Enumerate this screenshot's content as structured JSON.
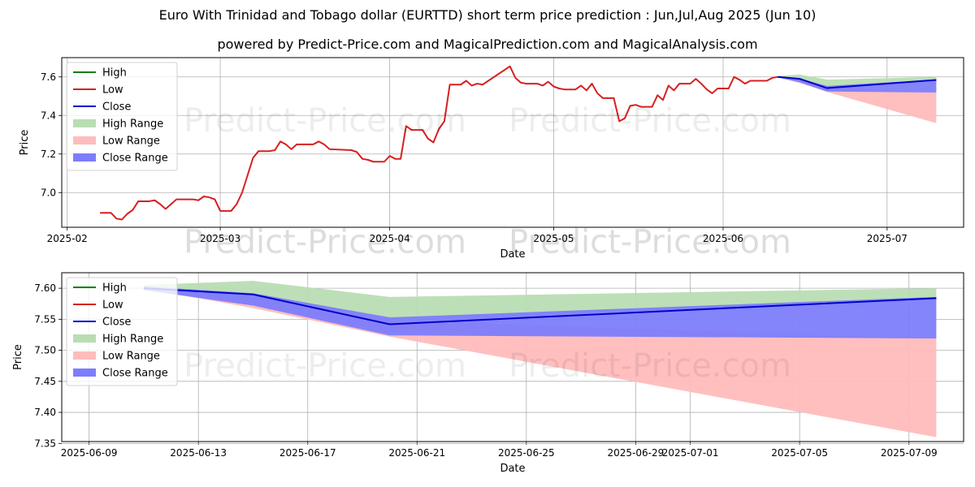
{
  "title": "Euro With Trinidad and Tobago dollar (EURTTD) short term price prediction : Jun,Jul,Aug 2025 (Jun 10)",
  "subtitle": "powered by Predict-Price.com and MagicalPrediction.com and MagicalAnalysis.com",
  "watermark": "Predict-Price.com",
  "colors": {
    "high": "#008000",
    "low": "#d62020",
    "close": "#0000cc",
    "high_range": "#b9ddb3",
    "low_range": "#ffbcbc",
    "close_range": "#7d7dfb"
  },
  "chart_data": [
    {
      "type": "line",
      "xlabel": "Date",
      "ylabel": "Price",
      "grid": true,
      "legend_position": "top-left",
      "legend": [
        "High",
        "Low",
        "Close",
        "High Range",
        "Low Range",
        "Close Range"
      ],
      "xlim": [
        "2025-01-31",
        "2025-07-15"
      ],
      "ylim": [
        6.82,
        7.7
      ],
      "x_ticks": [
        "2025-02",
        "2025-03",
        "2025-04",
        "2025-05",
        "2025-06",
        "2025-07"
      ],
      "y_ticks": [
        7.0,
        7.2,
        7.4,
        7.6
      ],
      "series": [
        {
          "name": "Low",
          "points": [
            [
              "2025-02-07",
              6.895
            ],
            [
              "2025-02-09",
              6.895
            ],
            [
              "2025-02-10",
              6.865
            ],
            [
              "2025-02-11",
              6.86
            ],
            [
              "2025-02-12",
              6.89
            ],
            [
              "2025-02-13",
              6.91
            ],
            [
              "2025-02-14",
              6.955
            ],
            [
              "2025-02-16",
              6.955
            ],
            [
              "2025-02-17",
              6.96
            ],
            [
              "2025-02-18",
              6.94
            ],
            [
              "2025-02-19",
              6.915
            ],
            [
              "2025-02-20",
              6.94
            ],
            [
              "2025-02-21",
              6.965
            ],
            [
              "2025-02-24",
              6.965
            ],
            [
              "2025-02-25",
              6.96
            ],
            [
              "2025-02-26",
              6.98
            ],
            [
              "2025-02-27",
              6.975
            ],
            [
              "2025-02-28",
              6.965
            ],
            [
              "2025-03-01",
              6.905
            ],
            [
              "2025-03-03",
              6.905
            ],
            [
              "2025-03-04",
              6.94
            ],
            [
              "2025-03-05",
              7.0
            ],
            [
              "2025-03-06",
              7.09
            ],
            [
              "2025-03-07",
              7.18
            ],
            [
              "2025-03-08",
              7.215
            ],
            [
              "2025-03-10",
              7.215
            ],
            [
              "2025-03-11",
              7.22
            ],
            [
              "2025-03-12",
              7.265
            ],
            [
              "2025-03-13",
              7.25
            ],
            [
              "2025-03-14",
              7.225
            ],
            [
              "2025-03-15",
              7.25
            ],
            [
              "2025-03-18",
              7.25
            ],
            [
              "2025-03-19",
              7.265
            ],
            [
              "2025-03-20",
              7.25
            ],
            [
              "2025-03-21",
              7.225
            ],
            [
              "2025-03-25",
              7.22
            ],
            [
              "2025-03-26",
              7.21
            ],
            [
              "2025-03-27",
              7.175
            ],
            [
              "2025-03-28",
              7.17
            ],
            [
              "2025-03-29",
              7.16
            ],
            [
              "2025-03-31",
              7.16
            ],
            [
              "2025-04-01",
              7.19
            ],
            [
              "2025-04-02",
              7.175
            ],
            [
              "2025-04-03",
              7.175
            ],
            [
              "2025-04-04",
              7.345
            ],
            [
              "2025-04-05",
              7.325
            ],
            [
              "2025-04-07",
              7.325
            ],
            [
              "2025-04-08",
              7.28
            ],
            [
              "2025-04-09",
              7.26
            ],
            [
              "2025-04-10",
              7.33
            ],
            [
              "2025-04-11",
              7.37
            ],
            [
              "2025-04-12",
              7.56
            ],
            [
              "2025-04-14",
              7.56
            ],
            [
              "2025-04-15",
              7.58
            ],
            [
              "2025-04-16",
              7.555
            ],
            [
              "2025-04-17",
              7.565
            ],
            [
              "2025-04-18",
              7.56
            ],
            [
              "2025-04-23",
              7.655
            ],
            [
              "2025-04-24",
              7.595
            ],
            [
              "2025-04-25",
              7.57
            ],
            [
              "2025-04-26",
              7.565
            ],
            [
              "2025-04-28",
              7.565
            ],
            [
              "2025-04-29",
              7.555
            ],
            [
              "2025-04-30",
              7.575
            ],
            [
              "2025-05-01",
              7.55
            ],
            [
              "2025-05-02",
              7.54
            ],
            [
              "2025-05-03",
              7.535
            ],
            [
              "2025-05-05",
              7.535
            ],
            [
              "2025-05-06",
              7.555
            ],
            [
              "2025-05-07",
              7.53
            ],
            [
              "2025-05-08",
              7.565
            ],
            [
              "2025-05-09",
              7.515
            ],
            [
              "2025-05-10",
              7.49
            ],
            [
              "2025-05-12",
              7.49
            ],
            [
              "2025-05-13",
              7.37
            ],
            [
              "2025-05-14",
              7.385
            ],
            [
              "2025-05-15",
              7.45
            ],
            [
              "2025-05-16",
              7.455
            ],
            [
              "2025-05-17",
              7.445
            ],
            [
              "2025-05-19",
              7.445
            ],
            [
              "2025-05-20",
              7.505
            ],
            [
              "2025-05-21",
              7.48
            ],
            [
              "2025-05-22",
              7.555
            ],
            [
              "2025-05-23",
              7.53
            ],
            [
              "2025-05-24",
              7.565
            ],
            [
              "2025-05-26",
              7.565
            ],
            [
              "2025-05-27",
              7.59
            ],
            [
              "2025-05-28",
              7.565
            ],
            [
              "2025-05-29",
              7.535
            ],
            [
              "2025-05-30",
              7.515
            ],
            [
              "2025-05-31",
              7.54
            ],
            [
              "2025-06-02",
              7.54
            ],
            [
              "2025-06-03",
              7.6
            ],
            [
              "2025-06-04",
              7.585
            ],
            [
              "2025-06-05",
              7.565
            ],
            [
              "2025-06-06",
              7.58
            ],
            [
              "2025-06-09",
              7.58
            ],
            [
              "2025-06-10",
              7.595
            ],
            [
              "2025-06-11",
              7.6
            ]
          ]
        },
        {
          "name": "Close",
          "points": [
            [
              "2025-06-11",
              7.6
            ],
            [
              "2025-06-15",
              7.59
            ],
            [
              "2025-06-20",
              7.542
            ],
            [
              "2025-07-10",
              7.584
            ]
          ]
        },
        {
          "name": "High Range",
          "band": [
            [
              "2025-06-11",
              7.6,
              7.605
            ],
            [
              "2025-06-15",
              7.58,
              7.612
            ],
            [
              "2025-06-20",
              7.548,
              7.586
            ],
            [
              "2025-07-10",
              7.582,
              7.6
            ]
          ]
        },
        {
          "name": "Low Range",
          "band": [
            [
              "2025-06-11",
              7.6,
              7.6
            ],
            [
              "2025-06-15",
              7.568,
              7.585
            ],
            [
              "2025-06-20",
              7.522,
              7.548
            ],
            [
              "2025-07-10",
              7.36,
              7.519
            ]
          ]
        },
        {
          "name": "Close Range",
          "band": [
            [
              "2025-06-11",
              7.597,
              7.603
            ],
            [
              "2025-06-15",
              7.572,
              7.592
            ],
            [
              "2025-06-20",
              7.524,
              7.553
            ],
            [
              "2025-07-10",
              7.519,
              7.586
            ]
          ]
        }
      ]
    },
    {
      "type": "line",
      "xlabel": "Date",
      "ylabel": "Price",
      "grid": true,
      "legend_position": "top-left",
      "legend": [
        "High",
        "Low",
        "Close",
        "High Range",
        "Low Range",
        "Close Range"
      ],
      "xlim": [
        "2025-06-08",
        "2025-07-11"
      ],
      "ylim": [
        7.353,
        7.625
      ],
      "x_ticks": [
        "2025-06-09",
        "2025-06-13",
        "2025-06-17",
        "2025-06-21",
        "2025-06-25",
        "2025-06-29",
        "2025-07-01",
        "2025-07-05",
        "2025-07-09"
      ],
      "y_ticks": [
        7.35,
        7.4,
        7.45,
        7.5,
        7.55,
        7.6
      ],
      "y_tick_labels": [
        "7.35",
        "7.40",
        "7.45",
        "7.50",
        "7.55",
        "7.60"
      ],
      "series": [
        {
          "name": "Close",
          "points": [
            [
              "2025-06-11",
              7.6
            ],
            [
              "2025-06-15",
              7.59
            ],
            [
              "2025-06-20",
              7.542
            ],
            [
              "2025-07-10",
              7.584
            ]
          ]
        },
        {
          "name": "High Range",
          "band": [
            [
              "2025-06-11",
              7.6,
              7.605
            ],
            [
              "2025-06-15",
              7.58,
              7.612
            ],
            [
              "2025-06-20",
              7.548,
              7.586
            ],
            [
              "2025-07-10",
              7.582,
              7.6
            ]
          ]
        },
        {
          "name": "Low Range",
          "band": [
            [
              "2025-06-11",
              7.6,
              7.6
            ],
            [
              "2025-06-15",
              7.568,
              7.585
            ],
            [
              "2025-06-20",
              7.522,
              7.548
            ],
            [
              "2025-07-10",
              7.36,
              7.519
            ]
          ]
        },
        {
          "name": "Close Range",
          "band": [
            [
              "2025-06-11",
              7.597,
              7.603
            ],
            [
              "2025-06-15",
              7.572,
              7.592
            ],
            [
              "2025-06-20",
              7.524,
              7.553
            ],
            [
              "2025-07-10",
              7.519,
              7.586
            ]
          ]
        }
      ]
    }
  ]
}
